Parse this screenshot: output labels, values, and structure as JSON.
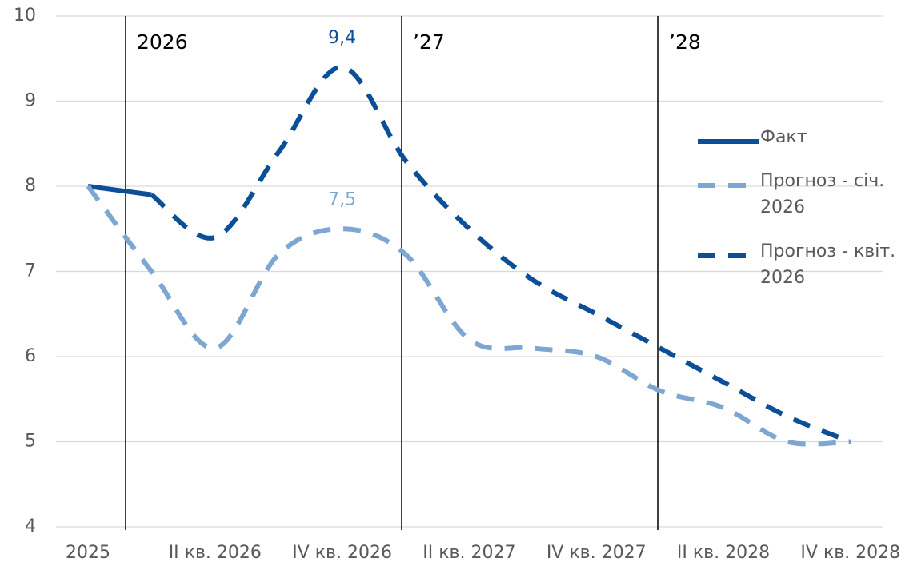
{
  "chart_data": {
    "type": "line",
    "categories": [
      "2025",
      null,
      "II кв. 2026",
      null,
      "IV кв. 2026",
      null,
      "II кв. 2027",
      null,
      "IV кв. 2027",
      null,
      "II кв. 2028",
      null,
      "IV кв. 2028"
    ],
    "series": [
      {
        "name": "Факт",
        "color": "#0c4f99",
        "dashed": false,
        "values": [
          8.0,
          7.9,
          null,
          null,
          null,
          null,
          null,
          null,
          null,
          null,
          null,
          null,
          null
        ]
      },
      {
        "name": "Прогноз - січ. 2026",
        "color": "#7ea6d2",
        "dashed": true,
        "values": [
          8.0,
          7.0,
          6.1,
          7.2,
          7.5,
          7.2,
          6.2,
          6.1,
          6.0,
          5.6,
          5.4,
          5.0,
          5.0
        ],
        "value_labels": [
          null,
          null,
          null,
          null,
          "7,5",
          null,
          null,
          null,
          null,
          null,
          null,
          null,
          null
        ]
      },
      {
        "name": "Прогноз - квіт. 2026",
        "color": "#0c4f99",
        "dashed": true,
        "values": [
          null,
          7.9,
          7.4,
          8.4,
          9.4,
          8.3,
          7.5,
          6.9,
          6.5,
          6.1,
          5.7,
          5.3,
          5.0
        ],
        "value_labels": [
          null,
          null,
          null,
          null,
          "9,4",
          null,
          null,
          null,
          null,
          null,
          null,
          null,
          null
        ]
      }
    ],
    "annotations": [
      "2026",
      "’27",
      "’28"
    ],
    "ylim": [
      4,
      10
    ],
    "yticks": [
      4,
      5,
      6,
      7,
      8,
      9,
      10
    ],
    "grid": true
  }
}
